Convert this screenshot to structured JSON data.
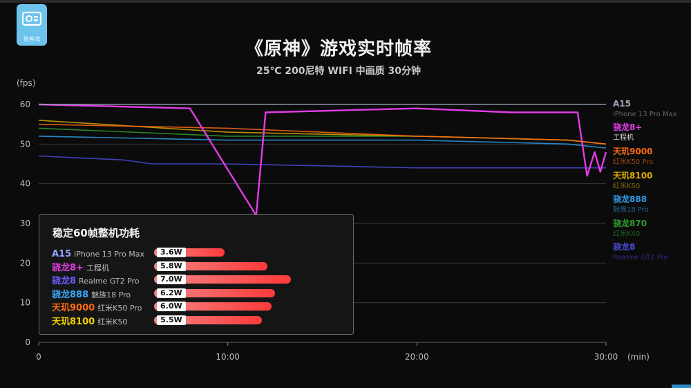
{
  "logo_text": "极客湾",
  "title": "《原神》游戏实时帧率",
  "subtitle": "25℃ 200尼特 WIFI 中画质 30分钟",
  "chart_data": {
    "type": "line",
    "title": "《原神》游戏实时帧率",
    "subtitle": "25℃ 200尼特 WIFI 中画质 30分钟",
    "ylabel": "(fps)",
    "xlabel": "(min)",
    "xlim": [
      0,
      30
    ],
    "ylim": [
      0,
      60
    ],
    "y_ticks": [
      "0",
      "10",
      "20",
      "30",
      "40",
      "50",
      "60"
    ],
    "x_ticks": [
      {
        "x": 0,
        "label": "0"
      },
      {
        "x": 10,
        "label": "10:00"
      },
      {
        "x": 20,
        "label": "20:00"
      },
      {
        "x": 30,
        "label": "30:00"
      }
    ],
    "grid": true,
    "legend_position": "right",
    "series": [
      {
        "name": "A15",
        "device": "iPhone 13 Pro Max",
        "color": "#9aa6b8",
        "points": [
          [
            0,
            60
          ],
          [
            15,
            60
          ],
          [
            29,
            60
          ],
          [
            30,
            60
          ]
        ]
      },
      {
        "name": "骁龙8+",
        "device": "工程机",
        "color": "#e23de6",
        "points": [
          [
            0,
            60
          ],
          [
            8,
            59
          ],
          [
            11.5,
            32
          ],
          [
            12,
            58
          ],
          [
            20,
            59
          ],
          [
            25,
            58
          ],
          [
            28.5,
            58
          ],
          [
            29,
            42
          ],
          [
            29.4,
            48
          ],
          [
            29.7,
            43
          ],
          [
            30,
            48
          ]
        ]
      },
      {
        "name": "天玑9000",
        "device": "红米K50 Pro",
        "color": "#ff6a10",
        "points": [
          [
            0,
            55
          ],
          [
            10,
            54
          ],
          [
            20,
            52
          ],
          [
            28,
            51
          ],
          [
            30,
            50
          ]
        ]
      },
      {
        "name": "天玑8100",
        "device": "红米K50",
        "color": "#d9a800",
        "points": [
          [
            0,
            56
          ],
          [
            10,
            53
          ],
          [
            20,
            52
          ],
          [
            28,
            51
          ],
          [
            30,
            50
          ]
        ]
      },
      {
        "name": "骁龙888",
        "device": "魅族18 Pro",
        "color": "#2f9be6",
        "points": [
          [
            0,
            52
          ],
          [
            10,
            51
          ],
          [
            20,
            51
          ],
          [
            28,
            50
          ],
          [
            30,
            49
          ]
        ]
      },
      {
        "name": "骁龙870",
        "device": "红米K40",
        "color": "#2e9b2e",
        "points": [
          [
            0,
            54
          ],
          [
            10,
            52
          ],
          [
            20,
            52
          ],
          [
            28,
            51
          ],
          [
            30,
            50
          ]
        ]
      },
      {
        "name": "骁龙8",
        "device": "Realme GT2 Pro",
        "color": "#4a4ad8",
        "points": [
          [
            0,
            47
          ],
          [
            4.5,
            46
          ],
          [
            6,
            45
          ],
          [
            10,
            45
          ],
          [
            20,
            44
          ],
          [
            28,
            44
          ],
          [
            30,
            44
          ]
        ]
      }
    ]
  },
  "power_panel": {
    "title": "稳定60帧整机功耗",
    "xmax": 7.0,
    "rows": [
      {
        "chip": "A15",
        "device": "iPhone 13 Pro Max",
        "value": 3.6,
        "label": "3.6W",
        "color": "#8fa8ff"
      },
      {
        "chip": "骁龙8+",
        "device": "工程机",
        "value": 5.8,
        "label": "5.8W",
        "color": "#e23de6"
      },
      {
        "chip": "骁龙8",
        "device": "Realme GT2 Pro",
        "value": 7.0,
        "label": "7.0W",
        "color": "#6a5cff"
      },
      {
        "chip": "骁龙888",
        "device": "魅族18 Pro",
        "value": 6.2,
        "label": "6.2W",
        "color": "#38a8ff"
      },
      {
        "chip": "天玑9000",
        "device": "红米K50 Pro",
        "value": 6.0,
        "label": "6.0W",
        "color": "#ff6a10"
      },
      {
        "chip": "天玑8100",
        "device": "红米K50",
        "value": 5.5,
        "label": "5.5W",
        "color": "#f0d000"
      }
    ]
  }
}
